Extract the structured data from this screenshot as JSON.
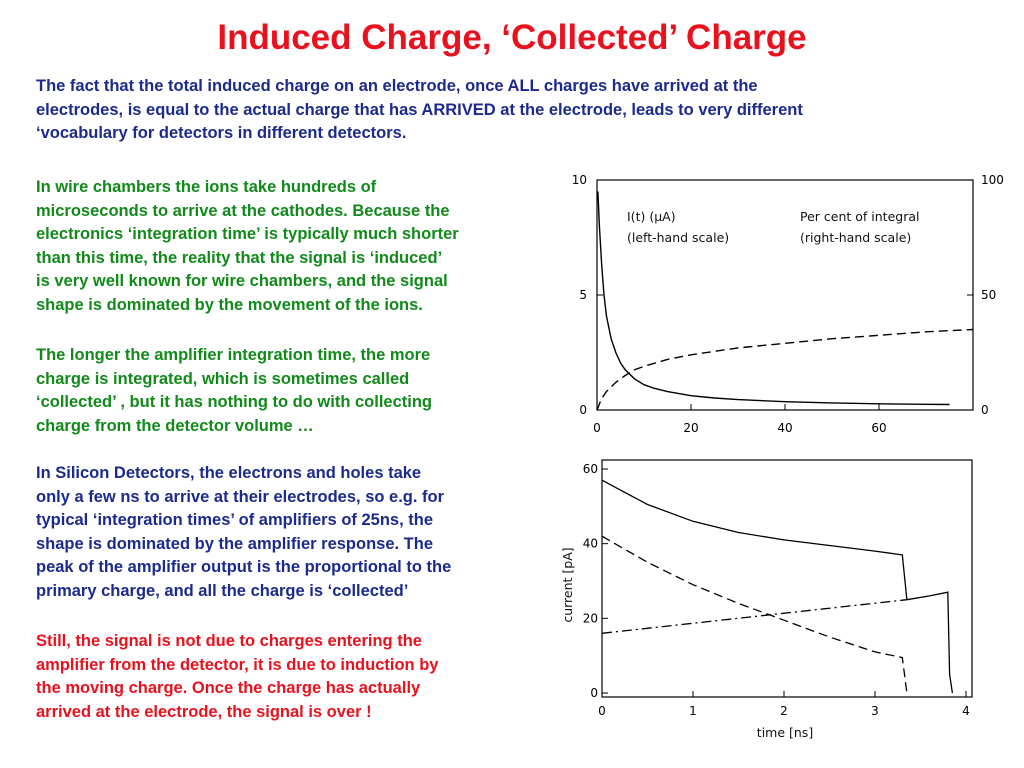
{
  "title": "Induced Charge, ‘Collected’ Charge",
  "intro_lines": [
    "The fact that the total induced charge on an electrode, once ALL charges have arrived at the",
    "electrodes, is equal to the actual charge that has ARRIVED at the electrode, leads to very different",
    "‘vocabulary for detectors in different detectors."
  ],
  "para1_lines": [
    "In wire chambers the ions take hundreds of",
    "microseconds to arrive at the cathodes. Because the",
    "electronics ‘integration time’ is typically much shorter",
    "than this time, the reality that the signal is ‘induced’",
    "is very well known for wire chambers, and the signal",
    "shape is dominated by the movement of the ions."
  ],
  "para2_lines": [
    "The longer the amplifier integration time, the more",
    "charge is integrated, which is sometimes called",
    "‘collected’ , but it has nothing to do with collecting",
    "charge from the detector volume …"
  ],
  "para3_lines": [
    "In Silicon Detectors, the electrons and holes take",
    "only a few ns to arrive at their electrodes, so e.g. for",
    "typical ‘integration times’ of amplifiers of 25ns, the",
    "shape is dominated by the amplifier response. The",
    "peak of  the amplifier output is the proportional to the",
    "primary charge, and all the charge is ‘collected’"
  ],
  "para4_lines": [
    "Still, the signal is not due to charges entering the",
    "amplifier from the detector, it is due to induction by",
    "the moving charge.  Once the charge has actually",
    "arrived at the electrode, the signal is over !"
  ],
  "colors": {
    "title": "#e8111d",
    "green": "#118a1a",
    "navy": "#1b2a8c",
    "red": "#e8111d"
  },
  "chart_data": [
    {
      "type": "line",
      "legend_left_1": "I(t) (μA)",
      "legend_left_2": "(left-hand scale)",
      "legend_right_1": "Per cent of integral",
      "legend_right_2": "(right-hand scale)",
      "xlim": [
        0,
        80
      ],
      "ylim_left": [
        0,
        10
      ],
      "ylim_right": [
        0,
        100
      ],
      "x_ticks": [
        "0",
        "20",
        "40",
        "60"
      ],
      "y_ticks_left": [
        "0",
        "5",
        "10"
      ],
      "y_ticks_right": [
        "0",
        "50",
        "100"
      ],
      "series": [
        {
          "style": "solid",
          "axis": "left",
          "x": [
            0.2,
            0.5,
            1,
            1.5,
            2,
            3,
            4,
            5,
            6,
            8,
            10,
            12,
            15,
            20,
            25,
            30,
            40,
            50,
            60,
            70,
            75
          ],
          "y": [
            9.5,
            8.0,
            6.3,
            5.0,
            4.1,
            3.1,
            2.5,
            2.05,
            1.75,
            1.35,
            1.1,
            0.95,
            0.8,
            0.62,
            0.52,
            0.45,
            0.36,
            0.31,
            0.27,
            0.25,
            0.24
          ]
        },
        {
          "style": "dashed",
          "axis": "right",
          "x": [
            0,
            1,
            2,
            4,
            6,
            8,
            10,
            15,
            20,
            30,
            40,
            50,
            60,
            70,
            80
          ],
          "y": [
            0,
            5,
            8,
            12,
            15,
            17.5,
            19,
            22,
            24,
            27,
            29,
            31,
            32.5,
            34,
            35
          ]
        }
      ]
    },
    {
      "type": "line",
      "xlabel": "time [ns]",
      "ylabel": "current [pA]",
      "xlim": [
        0,
        4
      ],
      "ylim": [
        0,
        60
      ],
      "x_ticks": [
        "0",
        "1",
        "2",
        "3",
        "4"
      ],
      "y_ticks": [
        "0",
        "20",
        "40",
        "60"
      ],
      "series": [
        {
          "style": "solid",
          "x": [
            0,
            0.5,
            1,
            1.5,
            2,
            2.5,
            3,
            3.3,
            3.35,
            3.6,
            3.8,
            3.82,
            3.85
          ],
          "y": [
            57,
            50.5,
            46,
            43,
            41,
            39.5,
            38,
            37,
            25,
            26,
            27,
            5,
            0
          ]
        },
        {
          "style": "dashed",
          "x": [
            0,
            0.5,
            1,
            1.5,
            2,
            2.5,
            3,
            3.3,
            3.35
          ],
          "y": [
            42,
            35,
            29,
            24,
            19.5,
            15,
            11,
            9.5,
            0
          ]
        },
        {
          "style": "dashdot",
          "x": [
            0,
            3.35
          ],
          "y": [
            16,
            25
          ]
        }
      ]
    }
  ]
}
